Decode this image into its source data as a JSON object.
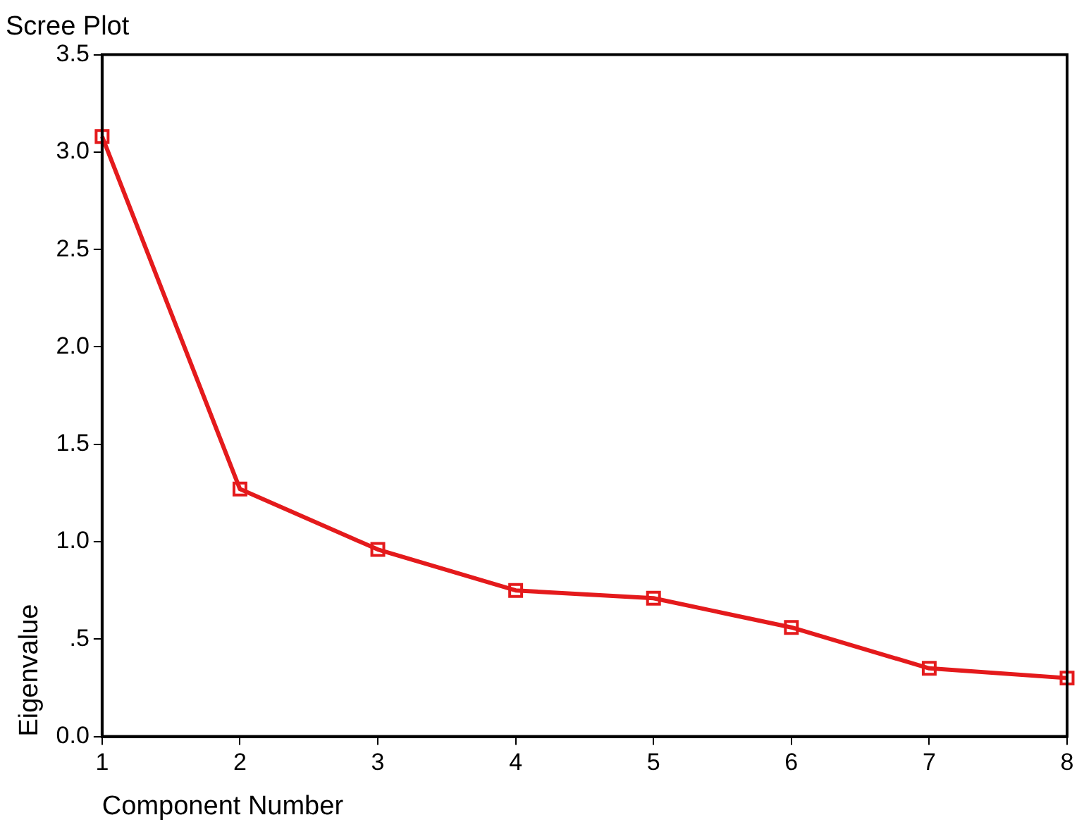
{
  "chart_data": {
    "type": "line",
    "title": "Scree Plot",
    "xlabel": "Component Number",
    "ylabel": "Eigenvalue",
    "x": [
      1,
      2,
      3,
      4,
      5,
      6,
      7,
      8
    ],
    "series": [
      {
        "color": "#e41a1c",
        "values": [
          3.08,
          1.27,
          0.96,
          0.75,
          0.71,
          0.56,
          0.35,
          0.3
        ]
      }
    ],
    "xlim": [
      1,
      8
    ],
    "xticks": [
      1,
      2,
      3,
      4,
      5,
      6,
      7,
      8
    ],
    "ylim": [
      0,
      3.5
    ],
    "yticks": [
      {
        "value": 0,
        "label": "0.0"
      },
      {
        "value": 0.5,
        "label": ".5"
      },
      {
        "value": 1,
        "label": "1.0"
      },
      {
        "value": 1.5,
        "label": "1.5"
      },
      {
        "value": 2,
        "label": "2.0"
      },
      {
        "value": 2.5,
        "label": "2.5"
      },
      {
        "value": 3,
        "label": "3.0"
      },
      {
        "value": 3.5,
        "label": "3.5"
      }
    ],
    "grid": false,
    "legend": false,
    "marker": "square",
    "line_style": "solid"
  }
}
